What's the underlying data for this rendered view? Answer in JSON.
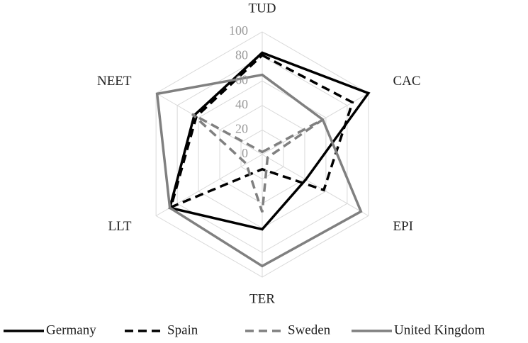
{
  "chart_data": {
    "type": "radar",
    "categories": [
      "TUD",
      "CAC",
      "EPI",
      "TER",
      "LLT",
      "NEET"
    ],
    "ylim": [
      0,
      100
    ],
    "yticks": [
      0,
      20,
      40,
      60,
      80,
      100
    ],
    "grid": true,
    "series": [
      {
        "name": "Germany",
        "color": "#000000",
        "dashed": false,
        "values": [
          83,
          100,
          41,
          61,
          87,
          64
        ]
      },
      {
        "name": "Spain",
        "color": "#000000",
        "dashed": true,
        "values": [
          81,
          85,
          58,
          12,
          86,
          62
        ]
      },
      {
        "name": "Sweden",
        "color": "#808080",
        "dashed": true,
        "values": [
          2,
          57,
          5,
          47,
          15,
          66
        ]
      },
      {
        "name": "United Kingdom",
        "color": "#808080",
        "dashed": false,
        "values": [
          65,
          57,
          93,
          91,
          87,
          99
        ]
      }
    ]
  }
}
